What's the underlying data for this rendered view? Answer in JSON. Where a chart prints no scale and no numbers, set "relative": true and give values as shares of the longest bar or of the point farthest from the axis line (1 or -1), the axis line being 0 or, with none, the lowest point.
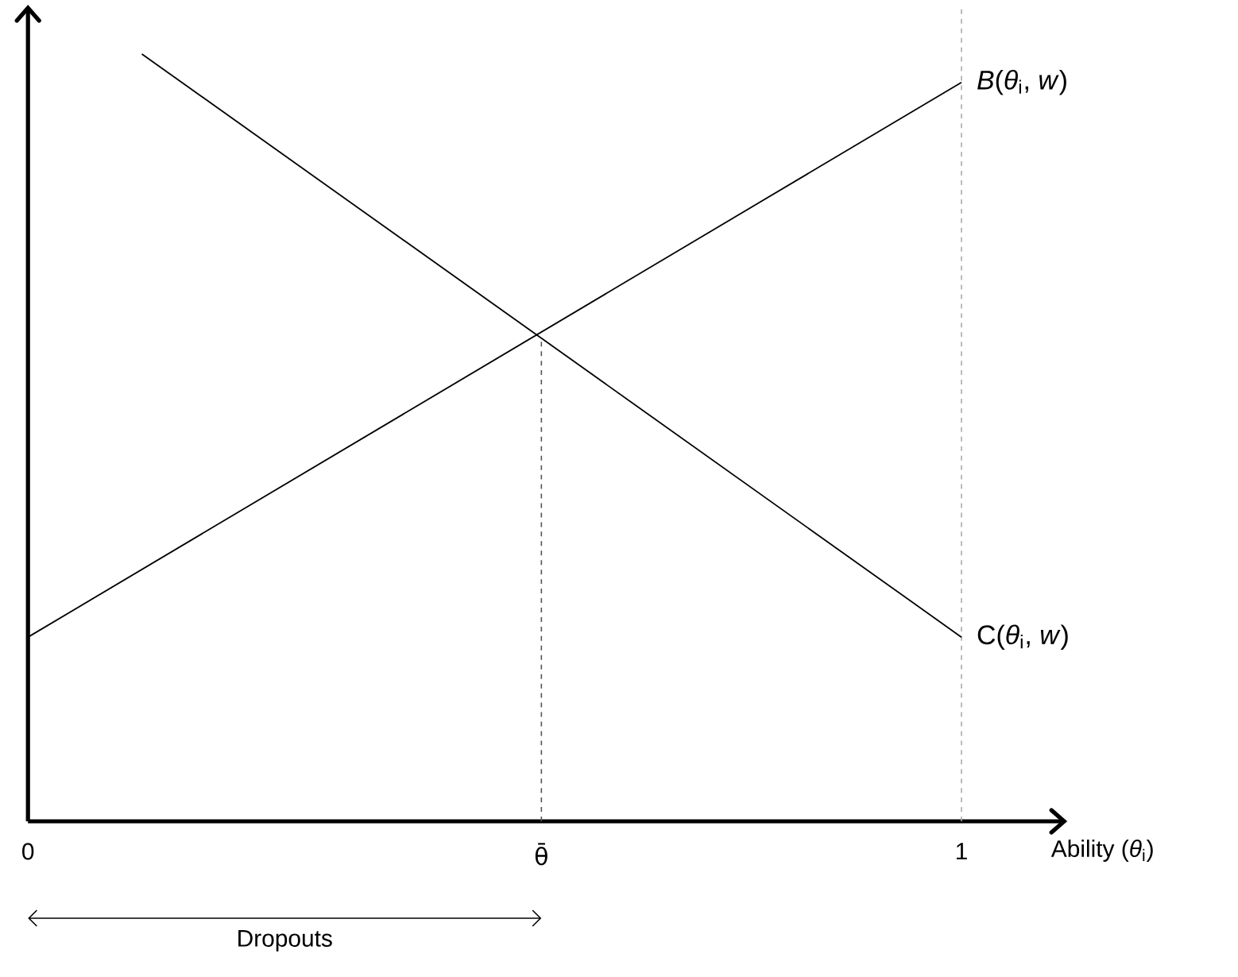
{
  "chart_data": {
    "type": "line",
    "relative": true,
    "series": [
      {
        "name": "*B*(*θ*$_{i}$, *w*)",
        "color": "#000000",
        "x": [
          0,
          1
        ],
        "values": [
          0.24,
          0.963
        ]
      },
      {
        "name": "C(*θ*$_{i}$, *w*)",
        "color": "#000000",
        "x": [
          0.122,
          1
        ],
        "values": [
          1,
          0.24
        ]
      }
    ],
    "xlabel": "Ability (*θ*$_{i}$)",
    "xlim": [
      0,
      1.11
    ],
    "xticks": [
      0,
      {
        "value": 0.55,
        "label": "θ̄"
      },
      1
    ],
    "tick_labels": "x",
    "ref_lines": [
      {
        "axis": "x",
        "value": 0.55,
        "color": "#555555",
        "line_style": "dashed"
      },
      {
        "axis": "x",
        "value": 1,
        "color": "#aaaaaa",
        "line_style": "dashed"
      }
    ],
    "annotations": [
      "Dropouts"
    ]
  }
}
